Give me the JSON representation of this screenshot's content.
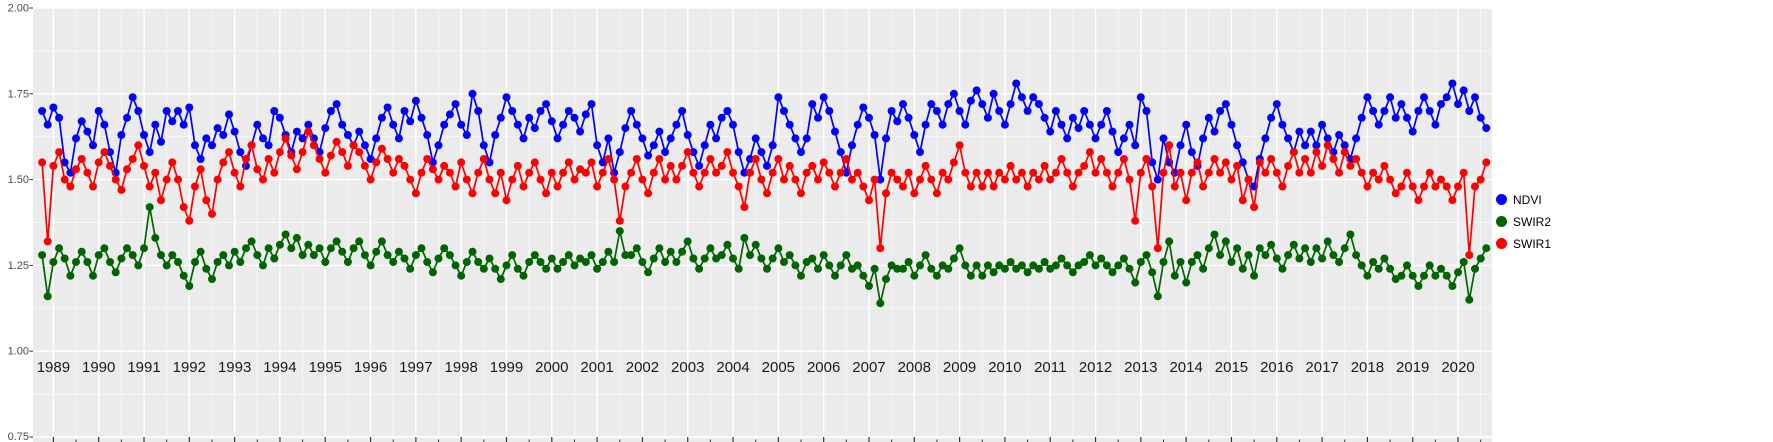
{
  "chart_data": {
    "type": "line",
    "title": "",
    "xlabel": "",
    "ylabel": "",
    "xlim": [
      1988.55,
      2020.75
    ],
    "ylim": [
      0.75,
      2.0
    ],
    "grid": true,
    "legend_position": "right",
    "panel_background": "#EBEBEB",
    "grid_color": "#FFFFFF",
    "x_ticks": [
      1989,
      1990,
      1991,
      1992,
      1993,
      1994,
      1995,
      1996,
      1997,
      1998,
      1999,
      2000,
      2001,
      2002,
      2003,
      2004,
      2005,
      2006,
      2007,
      2008,
      2009,
      2010,
      2011,
      2012,
      2013,
      2014,
      2015,
      2016,
      2017,
      2018,
      2019,
      2020
    ],
    "y_ticks": [
      0.75,
      1.0,
      1.25,
      1.5,
      1.75,
      2.0
    ],
    "y_tick_labels": [
      "0.75",
      "1.00",
      "1.25",
      "1.50",
      "1.75",
      "2.00"
    ],
    "x_start": 1988.75,
    "x_step": 0.125,
    "series": [
      {
        "name": "NDVI",
        "color": "#0000FF",
        "values": [
          1.7,
          1.66,
          1.71,
          1.68,
          1.55,
          1.52,
          1.62,
          1.67,
          1.64,
          1.6,
          1.7,
          1.66,
          1.58,
          1.52,
          1.63,
          1.68,
          1.74,
          1.7,
          1.63,
          1.58,
          1.66,
          1.61,
          1.7,
          1.67,
          1.7,
          1.66,
          1.71,
          1.6,
          1.56,
          1.62,
          1.6,
          1.65,
          1.63,
          1.69,
          1.64,
          1.58,
          1.54,
          1.6,
          1.66,
          1.62,
          1.6,
          1.7,
          1.68,
          1.63,
          1.58,
          1.64,
          1.62,
          1.66,
          1.62,
          1.58,
          1.65,
          1.7,
          1.72,
          1.66,
          1.63,
          1.6,
          1.64,
          1.6,
          1.56,
          1.62,
          1.68,
          1.71,
          1.66,
          1.62,
          1.7,
          1.67,
          1.73,
          1.68,
          1.63,
          1.55,
          1.6,
          1.66,
          1.69,
          1.72,
          1.66,
          1.63,
          1.75,
          1.7,
          1.6,
          1.55,
          1.63,
          1.68,
          1.74,
          1.7,
          1.66,
          1.62,
          1.68,
          1.65,
          1.7,
          1.72,
          1.67,
          1.62,
          1.66,
          1.7,
          1.68,
          1.64,
          1.69,
          1.72,
          1.6,
          1.55,
          1.62,
          1.52,
          1.58,
          1.65,
          1.7,
          1.66,
          1.62,
          1.57,
          1.6,
          1.64,
          1.58,
          1.62,
          1.66,
          1.7,
          1.63,
          1.58,
          1.54,
          1.6,
          1.66,
          1.62,
          1.68,
          1.7,
          1.66,
          1.58,
          1.52,
          1.56,
          1.62,
          1.58,
          1.54,
          1.6,
          1.74,
          1.7,
          1.66,
          1.62,
          1.58,
          1.62,
          1.72,
          1.68,
          1.74,
          1.7,
          1.64,
          1.58,
          1.52,
          1.6,
          1.66,
          1.71,
          1.68,
          1.63,
          1.5,
          1.62,
          1.7,
          1.67,
          1.72,
          1.68,
          1.63,
          1.58,
          1.66,
          1.72,
          1.7,
          1.66,
          1.72,
          1.75,
          1.7,
          1.66,
          1.73,
          1.76,
          1.72,
          1.68,
          1.75,
          1.7,
          1.66,
          1.72,
          1.78,
          1.74,
          1.7,
          1.74,
          1.72,
          1.68,
          1.64,
          1.7,
          1.66,
          1.62,
          1.68,
          1.65,
          1.7,
          1.66,
          1.62,
          1.66,
          1.7,
          1.64,
          1.58,
          1.62,
          1.66,
          1.6,
          1.74,
          1.7,
          1.55,
          1.5,
          1.62,
          1.55,
          1.52,
          1.6,
          1.66,
          1.58,
          1.54,
          1.62,
          1.68,
          1.64,
          1.7,
          1.72,
          1.66,
          1.6,
          1.55,
          1.5,
          1.48,
          1.56,
          1.62,
          1.68,
          1.72,
          1.66,
          1.62,
          1.58,
          1.64,
          1.6,
          1.64,
          1.6,
          1.66,
          1.62,
          1.58,
          1.63,
          1.6,
          1.56,
          1.62,
          1.68,
          1.74,
          1.7,
          1.66,
          1.7,
          1.74,
          1.68,
          1.72,
          1.68,
          1.64,
          1.7,
          1.74,
          1.7,
          1.66,
          1.72,
          1.74,
          1.78,
          1.72,
          1.76,
          1.7,
          1.74,
          1.68,
          1.65
        ]
      },
      {
        "name": "SWIR2",
        "color": "#006400",
        "values": [
          1.28,
          1.16,
          1.26,
          1.3,
          1.27,
          1.22,
          1.26,
          1.29,
          1.26,
          1.22,
          1.28,
          1.3,
          1.26,
          1.23,
          1.27,
          1.3,
          1.28,
          1.25,
          1.3,
          1.42,
          1.33,
          1.28,
          1.25,
          1.28,
          1.26,
          1.22,
          1.19,
          1.26,
          1.29,
          1.24,
          1.21,
          1.26,
          1.28,
          1.25,
          1.29,
          1.26,
          1.3,
          1.32,
          1.28,
          1.25,
          1.3,
          1.27,
          1.31,
          1.34,
          1.3,
          1.33,
          1.28,
          1.31,
          1.28,
          1.3,
          1.26,
          1.3,
          1.32,
          1.29,
          1.26,
          1.3,
          1.32,
          1.28,
          1.25,
          1.29,
          1.32,
          1.28,
          1.26,
          1.29,
          1.27,
          1.24,
          1.28,
          1.3,
          1.26,
          1.23,
          1.27,
          1.3,
          1.28,
          1.25,
          1.22,
          1.26,
          1.29,
          1.26,
          1.24,
          1.27,
          1.24,
          1.21,
          1.25,
          1.28,
          1.24,
          1.22,
          1.26,
          1.28,
          1.26,
          1.24,
          1.27,
          1.24,
          1.26,
          1.28,
          1.25,
          1.27,
          1.26,
          1.28,
          1.24,
          1.26,
          1.29,
          1.26,
          1.35,
          1.28,
          1.28,
          1.3,
          1.26,
          1.23,
          1.27,
          1.3,
          1.26,
          1.29,
          1.26,
          1.29,
          1.32,
          1.27,
          1.24,
          1.27,
          1.3,
          1.27,
          1.28,
          1.31,
          1.27,
          1.24,
          1.33,
          1.28,
          1.31,
          1.27,
          1.24,
          1.27,
          1.3,
          1.26,
          1.28,
          1.25,
          1.22,
          1.26,
          1.27,
          1.24,
          1.28,
          1.25,
          1.22,
          1.25,
          1.28,
          1.24,
          1.25,
          1.22,
          1.19,
          1.24,
          1.14,
          1.21,
          1.25,
          1.24,
          1.24,
          1.26,
          1.22,
          1.25,
          1.28,
          1.24,
          1.22,
          1.25,
          1.24,
          1.27,
          1.3,
          1.25,
          1.22,
          1.25,
          1.22,
          1.25,
          1.23,
          1.25,
          1.24,
          1.26,
          1.24,
          1.25,
          1.23,
          1.25,
          1.24,
          1.26,
          1.24,
          1.25,
          1.27,
          1.25,
          1.23,
          1.25,
          1.26,
          1.28,
          1.25,
          1.27,
          1.25,
          1.23,
          1.25,
          1.27,
          1.24,
          1.2,
          1.26,
          1.28,
          1.23,
          1.16,
          1.26,
          1.32,
          1.22,
          1.26,
          1.2,
          1.26,
          1.28,
          1.24,
          1.3,
          1.34,
          1.28,
          1.32,
          1.26,
          1.3,
          1.24,
          1.28,
          1.22,
          1.3,
          1.28,
          1.31,
          1.27,
          1.24,
          1.28,
          1.31,
          1.27,
          1.3,
          1.26,
          1.3,
          1.27,
          1.32,
          1.28,
          1.26,
          1.3,
          1.34,
          1.28,
          1.25,
          1.22,
          1.26,
          1.24,
          1.27,
          1.24,
          1.21,
          1.22,
          1.25,
          1.22,
          1.19,
          1.22,
          1.25,
          1.22,
          1.24,
          1.22,
          1.19,
          1.23,
          1.26,
          1.15,
          1.24,
          1.27,
          1.3
        ]
      },
      {
        "name": "SWIR1",
        "color": "#FF0000",
        "values": [
          1.55,
          1.32,
          1.54,
          1.58,
          1.5,
          1.48,
          1.53,
          1.56,
          1.52,
          1.48,
          1.55,
          1.58,
          1.54,
          1.5,
          1.47,
          1.53,
          1.56,
          1.6,
          1.54,
          1.48,
          1.52,
          1.44,
          1.5,
          1.55,
          1.5,
          1.42,
          1.38,
          1.48,
          1.53,
          1.44,
          1.4,
          1.5,
          1.55,
          1.58,
          1.52,
          1.48,
          1.56,
          1.6,
          1.53,
          1.5,
          1.56,
          1.52,
          1.58,
          1.62,
          1.57,
          1.53,
          1.58,
          1.64,
          1.6,
          1.56,
          1.52,
          1.57,
          1.61,
          1.58,
          1.54,
          1.6,
          1.58,
          1.54,
          1.5,
          1.55,
          1.59,
          1.56,
          1.52,
          1.56,
          1.54,
          1.5,
          1.46,
          1.52,
          1.56,
          1.53,
          1.5,
          1.54,
          1.52,
          1.48,
          1.55,
          1.5,
          1.46,
          1.52,
          1.56,
          1.5,
          1.46,
          1.52,
          1.44,
          1.5,
          1.54,
          1.48,
          1.52,
          1.55,
          1.5,
          1.46,
          1.52,
          1.48,
          1.52,
          1.55,
          1.5,
          1.53,
          1.52,
          1.55,
          1.48,
          1.52,
          1.56,
          1.5,
          1.38,
          1.48,
          1.52,
          1.56,
          1.5,
          1.46,
          1.52,
          1.56,
          1.5,
          1.54,
          1.5,
          1.54,
          1.58,
          1.52,
          1.48,
          1.52,
          1.56,
          1.52,
          1.54,
          1.58,
          1.52,
          1.48,
          1.42,
          1.52,
          1.56,
          1.5,
          1.46,
          1.52,
          1.56,
          1.5,
          1.54,
          1.5,
          1.46,
          1.52,
          1.54,
          1.5,
          1.55,
          1.52,
          1.48,
          1.52,
          1.56,
          1.5,
          1.52,
          1.48,
          1.44,
          1.5,
          1.3,
          1.46,
          1.52,
          1.5,
          1.48,
          1.52,
          1.46,
          1.5,
          1.54,
          1.5,
          1.46,
          1.52,
          1.5,
          1.55,
          1.6,
          1.52,
          1.48,
          1.52,
          1.48,
          1.52,
          1.48,
          1.52,
          1.5,
          1.54,
          1.5,
          1.52,
          1.48,
          1.52,
          1.5,
          1.54,
          1.5,
          1.52,
          1.56,
          1.52,
          1.48,
          1.52,
          1.54,
          1.58,
          1.52,
          1.56,
          1.52,
          1.48,
          1.52,
          1.56,
          1.5,
          1.38,
          1.52,
          1.56,
          1.48,
          1.3,
          1.52,
          1.6,
          1.48,
          1.52,
          1.44,
          1.52,
          1.55,
          1.48,
          1.52,
          1.56,
          1.52,
          1.55,
          1.5,
          1.54,
          1.44,
          1.5,
          1.42,
          1.55,
          1.52,
          1.56,
          1.52,
          1.48,
          1.54,
          1.58,
          1.52,
          1.56,
          1.52,
          1.58,
          1.54,
          1.6,
          1.56,
          1.52,
          1.58,
          1.54,
          1.56,
          1.52,
          1.48,
          1.52,
          1.5,
          1.54,
          1.5,
          1.46,
          1.48,
          1.52,
          1.48,
          1.44,
          1.48,
          1.52,
          1.48,
          1.5,
          1.48,
          1.44,
          1.48,
          1.52,
          1.28,
          1.48,
          1.5,
          1.55
        ]
      }
    ],
    "legend_entries": [
      "NDVI",
      "SWIR2",
      "SWIR1"
    ]
  }
}
